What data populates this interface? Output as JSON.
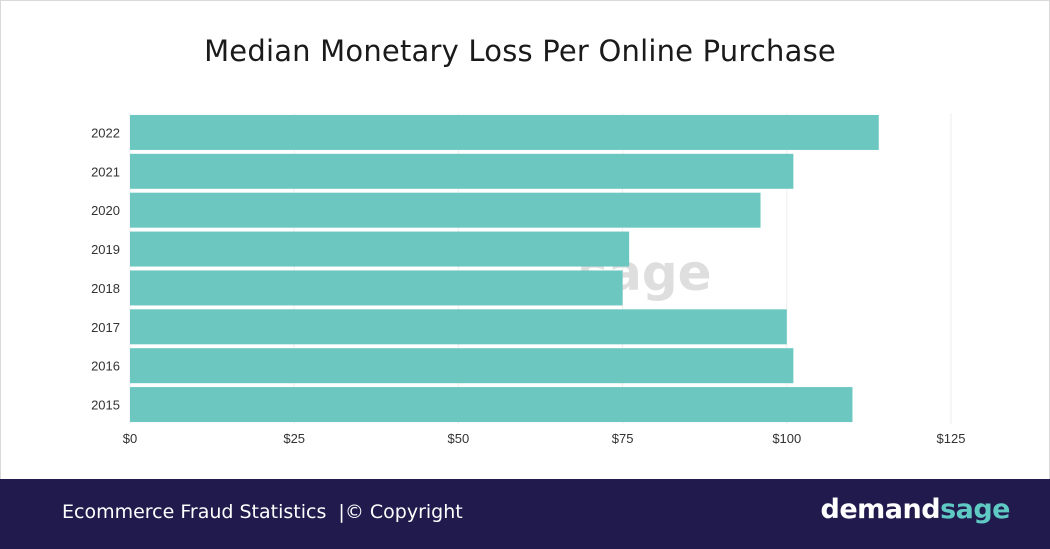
{
  "chart_data": {
    "type": "bar",
    "orientation": "horizontal",
    "title": "Median Monetary Loss Per Online Purchase",
    "categories": [
      "2022",
      "2021",
      "2020",
      "2019",
      "2018",
      "2017",
      "2016",
      "2015"
    ],
    "values": [
      114,
      101,
      96,
      76,
      75,
      100,
      101,
      110
    ],
    "xlim": [
      0,
      125
    ],
    "x_ticks": [
      "$0",
      "$25",
      "$50",
      "$75",
      "$100",
      "$125"
    ],
    "x_tick_values": [
      0,
      25,
      50,
      75,
      100,
      125
    ],
    "grid": true,
    "bar_color": "#6cc7c1",
    "watermark": "sage"
  },
  "footer": {
    "caption": "Ecommerce Fraud Statistics  |© Copyright",
    "brand_part1": "demand",
    "brand_part2": "sage",
    "background": "#201a4d",
    "brand_accent": "#5fc9c3"
  }
}
